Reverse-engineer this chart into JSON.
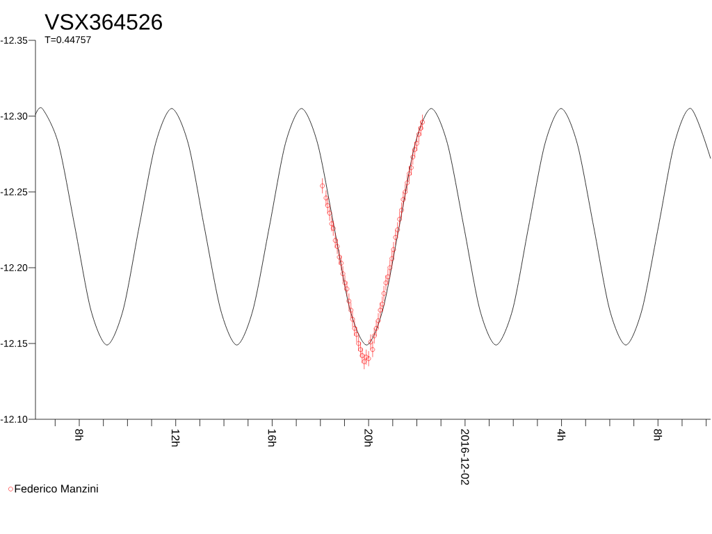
{
  "chart_data": {
    "type": "line",
    "title": "VSX364526",
    "subtitle": "T=0.44757",
    "xlim": [
      "2016-12-01T06:11",
      "2016-12-02T10:11"
    ],
    "ylim": [
      -12.1,
      -12.35
    ],
    "xticks": [
      {
        "value": "2016-12-01T07:00",
        "label": null
      },
      {
        "value": "2016-12-01T08:00",
        "label": "8h"
      },
      {
        "value": "2016-12-01T09:00",
        "label": null
      },
      {
        "value": "2016-12-01T10:00",
        "label": null
      },
      {
        "value": "2016-12-01T11:00",
        "label": null
      },
      {
        "value": "2016-12-01T12:00",
        "label": "12h"
      },
      {
        "value": "2016-12-01T13:00",
        "label": null
      },
      {
        "value": "2016-12-01T14:00",
        "label": null
      },
      {
        "value": "2016-12-01T15:00",
        "label": null
      },
      {
        "value": "2016-12-01T16:00",
        "label": "16h"
      },
      {
        "value": "2016-12-01T17:00",
        "label": null
      },
      {
        "value": "2016-12-01T18:00",
        "label": null
      },
      {
        "value": "2016-12-01T19:00",
        "label": null
      },
      {
        "value": "2016-12-01T20:00",
        "label": "20h"
      },
      {
        "value": "2016-12-01T21:00",
        "label": null
      },
      {
        "value": "2016-12-01T22:00",
        "label": null
      },
      {
        "value": "2016-12-01T23:00",
        "label": null
      },
      {
        "value": "2016-12-02",
        "label": "2016-12-02"
      },
      {
        "value": "2016-12-02T01:00",
        "label": null
      },
      {
        "value": "2016-12-02T02:00",
        "label": null
      },
      {
        "value": "2016-12-02T03:00",
        "label": null
      },
      {
        "value": "2016-12-02T04:00",
        "label": "4h"
      },
      {
        "value": "2016-12-02T05:00",
        "label": null
      },
      {
        "value": "2016-12-02T06:00",
        "label": null
      },
      {
        "value": "2016-12-02T07:00",
        "label": null
      },
      {
        "value": "2016-12-02T08:00",
        "label": "8h"
      },
      {
        "value": "2016-12-02T09:00",
        "label": null
      },
      {
        "value": "2016-12-02T10:00",
        "label": null
      }
    ],
    "yticks": [
      {
        "value": -12.35,
        "label": "-12.35"
      },
      {
        "value": -12.3,
        "label": "-12.30"
      },
      {
        "value": -12.25,
        "label": "-12.25"
      },
      {
        "value": -12.2,
        "label": "-12.20"
      },
      {
        "value": -12.15,
        "label": "-12.15"
      },
      {
        "value": -12.1,
        "label": "-12.10"
      }
    ],
    "legend": "bottom left",
    "series": [
      {
        "color": "#000000",
        "marker": "none",
        "x": [
          "2016-12-01T06:11",
          "2016-12-01T06:28",
          "2016-12-01T07:08",
          "2016-12-01T07:49",
          "2016-12-01T08:29",
          "2016-12-01T09:09",
          "2016-12-01T09:49",
          "2016-12-01T10:29",
          "2016-12-01T11:10",
          "2016-12-01T11:50",
          "2016-12-01T12:31",
          "2016-12-01T13:11",
          "2016-12-01T13:52",
          "2016-12-01T14:32",
          "2016-12-01T15:12",
          "2016-12-01T15:53",
          "2016-12-01T16:33",
          "2016-12-01T17:13",
          "2016-12-01T17:53",
          "2016-12-01T18:34",
          "2016-12-01T19:14",
          "2016-12-01T19:55",
          "2016-12-01T20:35",
          "2016-12-01T21:16",
          "2016-12-01T21:56",
          "2016-12-01T22:36",
          "2016-12-01T23:16",
          "2016-12-01T23:57",
          "2016-12-02T00:37",
          "2016-12-02T01:17",
          "2016-12-02T01:58",
          "2016-12-02T02:38",
          "2016-12-02T03:19",
          "2016-12-02T03:59",
          "2016-12-02T04:39",
          "2016-12-02T05:20",
          "2016-12-02T06:00",
          "2016-12-02T06:40",
          "2016-12-02T07:20",
          "2016-12-02T08:01",
          "2016-12-02T08:41",
          "2016-12-02T09:22",
          "2016-12-02T10:11"
        ],
        "values": [
          -12.301,
          -12.305,
          -12.282,
          -12.227,
          -12.172,
          -12.149,
          -12.172,
          -12.227,
          -12.282,
          -12.305,
          -12.282,
          -12.227,
          -12.172,
          -12.149,
          -12.172,
          -12.227,
          -12.282,
          -12.305,
          -12.282,
          -12.227,
          -12.172,
          -12.149,
          -12.172,
          -12.227,
          -12.282,
          -12.305,
          -12.282,
          -12.227,
          -12.172,
          -12.149,
          -12.172,
          -12.227,
          -12.282,
          -12.305,
          -12.282,
          -12.227,
          -12.172,
          -12.149,
          -12.172,
          -12.227,
          -12.282,
          -12.305,
          -12.272
        ]
      },
      {
        "type": "scatter",
        "name": "Federico Manzini",
        "color": "#ff0000",
        "marker": "circle",
        "x": [
          "2016-12-01T18:05",
          "2016-12-01T18:14",
          "2016-12-01T18:18",
          "2016-12-01T18:23",
          "2016-12-01T18:28",
          "2016-12-01T18:32",
          "2016-12-01T18:37",
          "2016-12-01T18:42",
          "2016-12-01T18:47",
          "2016-12-01T18:52",
          "2016-12-01T18:56",
          "2016-12-01T19:01",
          "2016-12-01T19:06",
          "2016-12-01T19:11",
          "2016-12-01T19:16",
          "2016-12-01T19:20",
          "2016-12-01T19:25",
          "2016-12-01T19:30",
          "2016-12-01T19:35",
          "2016-12-01T19:40",
          "2016-12-01T19:44",
          "2016-12-01T19:49",
          "2016-12-01T19:54",
          "2016-12-01T20:00",
          "2016-12-01T20:05",
          "2016-12-01T20:10",
          "2016-12-01T20:14",
          "2016-12-01T20:19",
          "2016-12-01T20:24",
          "2016-12-01T20:29",
          "2016-12-01T20:34",
          "2016-12-01T20:38",
          "2016-12-01T20:43",
          "2016-12-01T20:48",
          "2016-12-01T20:53",
          "2016-12-01T20:58",
          "2016-12-01T21:02",
          "2016-12-01T21:07",
          "2016-12-01T21:12",
          "2016-12-01T21:17",
          "2016-12-01T21:22",
          "2016-12-01T21:26",
          "2016-12-01T21:31",
          "2016-12-01T21:36",
          "2016-12-01T21:41",
          "2016-12-01T21:46",
          "2016-12-01T21:50",
          "2016-12-01T21:55",
          "2016-12-01T22:00",
          "2016-12-01T22:05",
          "2016-12-01T22:10",
          "2016-12-01T22:14"
        ],
        "values": [
          -12.254,
          -12.246,
          -12.241,
          -12.236,
          -12.229,
          -12.226,
          -12.218,
          -12.214,
          -12.207,
          -12.203,
          -12.196,
          -12.19,
          -12.186,
          -12.178,
          -12.172,
          -12.166,
          -12.16,
          -12.156,
          -12.15,
          -12.146,
          -12.142,
          -12.138,
          -12.141,
          -12.14,
          -12.151,
          -12.146,
          -12.155,
          -12.16,
          -12.165,
          -12.172,
          -12.176,
          -12.183,
          -12.19,
          -12.194,
          -12.2,
          -12.206,
          -12.212,
          -12.22,
          -12.225,
          -12.232,
          -12.238,
          -12.245,
          -12.25,
          -12.256,
          -12.262,
          -12.266,
          -12.273,
          -12.278,
          -12.282,
          -12.288,
          -12.292,
          -12.296
        ],
        "errors": [
          0.005,
          0.005,
          0.005,
          0.005,
          0.005,
          0.005,
          0.005,
          0.005,
          0.005,
          0.005,
          0.005,
          0.005,
          0.005,
          0.005,
          0.005,
          0.005,
          0.005,
          0.005,
          0.005,
          0.005,
          0.005,
          0.005,
          0.005,
          0.005,
          0.005,
          0.005,
          0.005,
          0.005,
          0.005,
          0.005,
          0.005,
          0.005,
          0.005,
          0.005,
          0.005,
          0.005,
          0.005,
          0.005,
          0.005,
          0.005,
          0.005,
          0.005,
          0.005,
          0.005,
          0.005,
          0.005,
          0.005,
          0.005,
          0.005,
          0.005,
          0.005,
          0.005
        ]
      }
    ]
  }
}
